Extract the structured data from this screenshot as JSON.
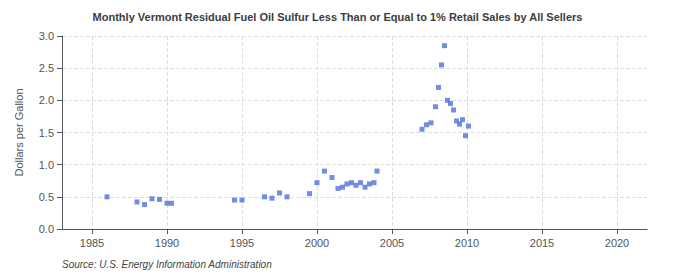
{
  "chart_data": {
    "type": "scatter",
    "title": "Monthly Vermont Residual Fuel Oil Sulfur Less Than or Equal to 1% Retail Sales by All Sellers",
    "ylabel": "Dollars per Gallon",
    "source": "Source: U.S. Energy Information Administration",
    "marker": "square",
    "grid": true,
    "xlim": [
      1983,
      2022
    ],
    "ylim": [
      0.0,
      3.0
    ],
    "xticks": [
      1985,
      1990,
      1995,
      2000,
      2005,
      2010,
      2015,
      2020
    ],
    "yticks": [
      {
        "value": 0.0,
        "label": "0.0"
      },
      0.5,
      {
        "value": 1.0,
        "label": "1.0"
      },
      1.5,
      {
        "value": 2.0,
        "label": "2.0"
      },
      2.5,
      {
        "value": 3.0,
        "label": "3.0"
      }
    ],
    "x": [
      1986.0,
      1988.0,
      1988.5,
      1989.0,
      1989.5,
      1990.0,
      1990.3,
      1994.5,
      1995.0,
      1996.5,
      1997.0,
      1997.5,
      1998.0,
      1999.5,
      2000.0,
      2000.5,
      2001.0,
      2001.4,
      2001.7,
      2002.0,
      2002.3,
      2002.6,
      2002.9,
      2003.2,
      2003.5,
      2003.8,
      2004.0,
      2007.0,
      2007.3,
      2007.6,
      2007.9,
      2008.1,
      2008.3,
      2008.5,
      2008.7,
      2008.9,
      2009.1,
      2009.3,
      2009.5,
      2009.7,
      2009.9,
      2010.1
    ],
    "values": [
      0.5,
      0.42,
      0.38,
      0.47,
      0.46,
      0.4,
      0.4,
      0.45,
      0.45,
      0.5,
      0.48,
      0.56,
      0.5,
      0.55,
      0.72,
      0.9,
      0.8,
      0.63,
      0.65,
      0.7,
      0.72,
      0.68,
      0.72,
      0.65,
      0.7,
      0.72,
      0.9,
      1.55,
      1.62,
      1.65,
      1.9,
      2.2,
      2.55,
      2.85,
      2.0,
      1.95,
      1.85,
      1.68,
      1.63,
      1.7,
      1.45,
      1.6
    ]
  }
}
